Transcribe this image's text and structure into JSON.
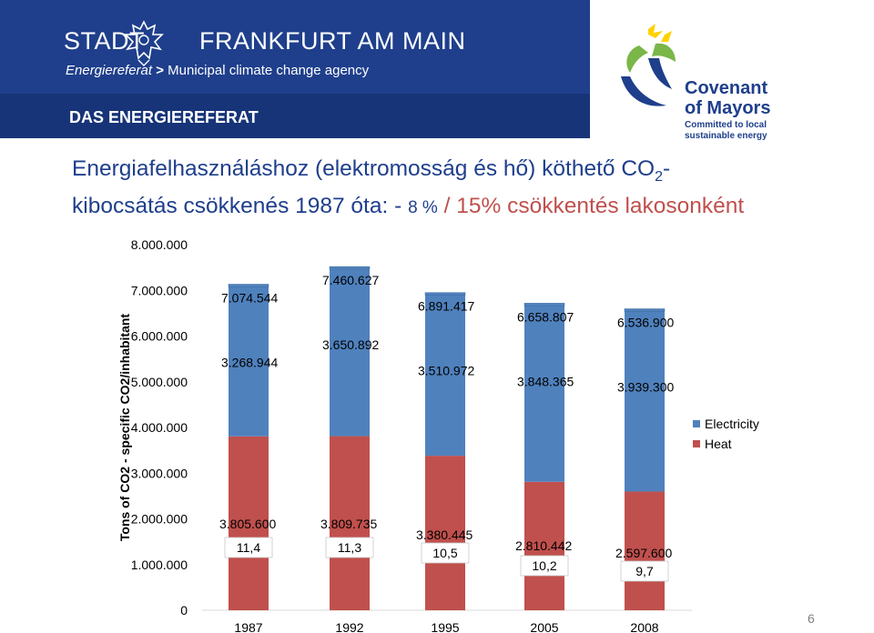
{
  "header": {
    "org_left": "STADT",
    "org_right": "FRANKFURT AM MAIN",
    "subtitle_prefix": "Energiereferat",
    "subtitle_sep": ">",
    "subtitle_text": "Municipal climate change agency",
    "department": "DAS ENERGIEREFERAT",
    "partner_line1": "Covenant",
    "partner_line2": "of Mayors",
    "partner_tag1": "Committed to local",
    "partner_tag2": "sustainable energy",
    "colors": {
      "banner": "#1f3f8c",
      "banner_bar": "#173478",
      "logo_blue": "#1f3f8c",
      "logo_green": "#7ab648",
      "logo_yellow": "#ffd200"
    }
  },
  "heading": {
    "line1_part1": "Energiafelhasználáshoz (elektromosság és hő) köthető CO",
    "line1_sub": "2",
    "line1_part2": "-",
    "line2_part1": "kibocsátás csökkenés 1987 óta: - ",
    "line2_pct": "8 %",
    "line2_part2": "/ 15% csökkentés lakosonként",
    "color_dark": "#1f3f8c",
    "color_accent": "#c0504d"
  },
  "chart_data": {
    "type": "bar",
    "stacked": true,
    "categories": [
      "1987",
      "1992",
      "1995",
      "2005",
      "2008"
    ],
    "series": [
      {
        "name": "Heat",
        "values": [
          3805600,
          3809735,
          3380445,
          2810442,
          2597600
        ],
        "labels": [
          "3.805.600",
          "3.809.735",
          "3.380.445",
          "2.810.442",
          "2.597.600"
        ],
        "color": "#c0504d"
      },
      {
        "name": "Electricity",
        "values": [
          3268944,
          3650892,
          3510972,
          3848365,
          3939300
        ],
        "labels": [
          "3.268.944",
          "3.650.892",
          "3.510.972",
          "3.848.365",
          "3.939.300"
        ],
        "color": "#4f81bd"
      }
    ],
    "totals": [
      7074544,
      7460627,
      6891417,
      6658807,
      6536900
    ],
    "total_labels": [
      "7.074.544",
      "7.460.627",
      "6.891.417",
      "6.658.807",
      "6.536.900"
    ],
    "per_capita_labels": [
      "11,4",
      "11,3",
      "10,5",
      "10,2",
      "9,7"
    ],
    "ylabel": "Tons of CO2 - specific CO2/inhabitant",
    "xlabel": "",
    "ylim": [
      0,
      8000000
    ],
    "yticks": [
      0,
      1000000,
      2000000,
      3000000,
      4000000,
      5000000,
      6000000,
      7000000,
      8000000
    ],
    "ytick_labels": [
      "0",
      "1.000.000",
      "2.000.000",
      "3.000.000",
      "4.000.000",
      "5.000.000",
      "6.000.000",
      "7.000.000",
      "8.000.000"
    ],
    "legend": {
      "position": "right",
      "entries": [
        "Electricity",
        "Heat"
      ]
    },
    "grid": false
  },
  "footer": {
    "page_number": "6"
  }
}
